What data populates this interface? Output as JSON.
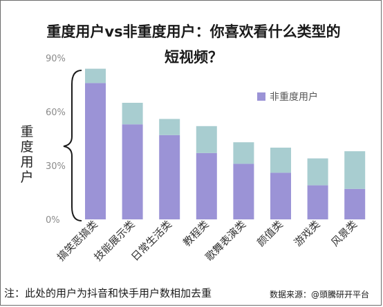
{
  "chart_data": {
    "type": "bar",
    "stacked": true,
    "title": "重度用户vs非重度用户：你喜欢看什么类型的短视频？",
    "ylabel": "重度用户",
    "yticks": [
      "0%",
      "30%",
      "60%",
      "90%"
    ],
    "ylim": [
      0,
      90
    ],
    "categories": [
      "搞笑恶搞类",
      "技能展示类",
      "日常生活类",
      "教程类",
      "歌舞表演类",
      "颜值类",
      "游戏类",
      "风景类"
    ],
    "series": [
      {
        "name": "非重度用户",
        "values": [
          76,
          53,
          47,
          37,
          31,
          26,
          19,
          17
        ],
        "color": "#9b93d6"
      },
      {
        "values": [
          8,
          12,
          9,
          15,
          12,
          14,
          15,
          21
        ],
        "color": "#a8cdd0"
      }
    ],
    "legend": "right",
    "grid": false
  },
  "footnote": "注：此处的用户为抖音和快手用户数相加去重",
  "source": "数据来源：@頭騰研开平台"
}
